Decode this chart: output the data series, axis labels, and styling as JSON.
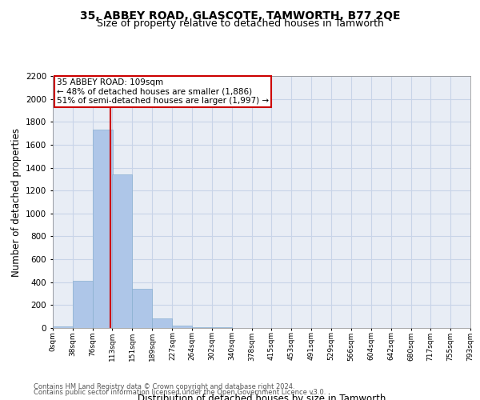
{
  "title": "35, ABBEY ROAD, GLASCOTE, TAMWORTH, B77 2QE",
  "subtitle": "Size of property relative to detached houses in Tamworth",
  "xlabel": "Distribution of detached houses by size in Tamworth",
  "ylabel": "Number of detached properties",
  "footnote1": "Contains HM Land Registry data © Crown copyright and database right 2024.",
  "footnote2": "Contains public sector information licensed under the Open Government Licence v3.0.",
  "bin_edges": [
    0,
    38,
    76,
    113,
    151,
    189,
    227,
    264,
    302,
    340,
    378,
    415,
    453,
    491,
    529,
    566,
    604,
    642,
    680,
    717,
    755
  ],
  "bar_heights": [
    15,
    410,
    1730,
    1340,
    340,
    85,
    20,
    10,
    5,
    2,
    1,
    0,
    0,
    0,
    0,
    0,
    0,
    0,
    0,
    0
  ],
  "bar_color": "#aec6e8",
  "bar_edgecolor": "#8ab0d0",
  "grid_color": "#c8d4e8",
  "background_color": "#e8edf5",
  "red_line_x": 109,
  "annotation_text": "35 ABBEY ROAD: 109sqm\n← 48% of detached houses are smaller (1,886)\n51% of semi-detached houses are larger (1,997) →",
  "annotation_box_color": "#ffffff",
  "annotation_border_color": "#cc0000",
  "red_line_color": "#cc0000",
  "ylim": [
    0,
    2200
  ],
  "ytick_step": 200,
  "title_fontsize": 10,
  "subtitle_fontsize": 9,
  "xlabel_fontsize": 8.5,
  "ylabel_fontsize": 8.5,
  "footnote_fontsize": 6,
  "annotation_fontsize": 7.5,
  "xtick_fontsize": 6.5,
  "ytick_fontsize": 7.5
}
